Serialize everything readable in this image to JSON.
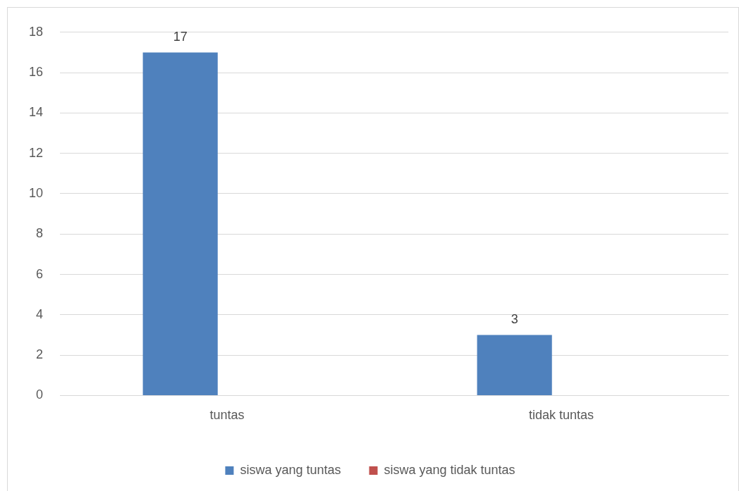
{
  "chart_data": {
    "type": "bar",
    "categories": [
      "tuntas",
      "tidak tuntas"
    ],
    "series": [
      {
        "name": "siswa yang tuntas",
        "color": "#4f81bd",
        "values": [
          17,
          3
        ]
      },
      {
        "name": "siswa yang tidak tuntas",
        "color": "#c0504d",
        "values": [
          null,
          null
        ]
      }
    ],
    "ylim": [
      0,
      18
    ],
    "yticks": [
      0,
      2,
      4,
      6,
      8,
      10,
      12,
      14,
      16,
      18
    ],
    "grid": "y",
    "legend": "bottom",
    "data_labels": true
  }
}
